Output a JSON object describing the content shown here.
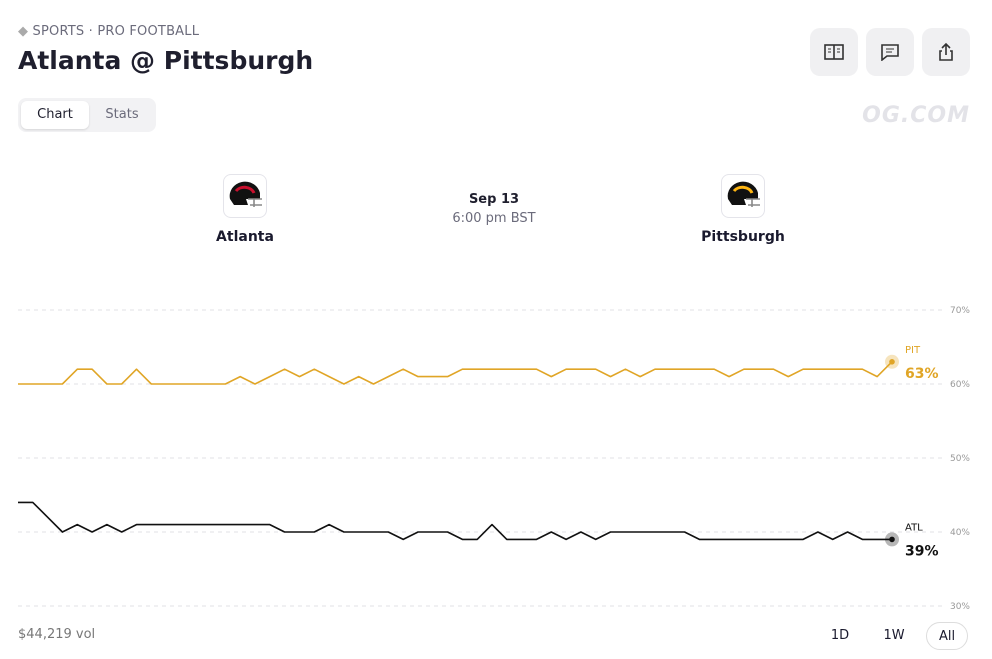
{
  "header": {
    "breadcrumb": "SPORTS · PRO FOOTBALL",
    "title": "Atlanta @ Pittsburgh"
  },
  "tabs": [
    "Chart",
    "Stats"
  ],
  "watermark": "OG.COM",
  "matchup": {
    "away": "Atlanta",
    "home": "Pittsburgh",
    "date": "Sep 13",
    "time": "6:00 pm BST"
  },
  "volume": "$44,219 vol",
  "ranges": [
    "1D",
    "1W",
    "All"
  ],
  "chart_data": {
    "type": "line",
    "ylim": [
      30,
      70
    ],
    "yticks": [
      {
        "value": 30,
        "label": "30%"
      },
      {
        "value": 40,
        "label": "40%"
      },
      {
        "value": 50,
        "label": "50%"
      },
      {
        "value": 60,
        "label": "60%"
      },
      {
        "value": 70,
        "label": "70%"
      }
    ],
    "grid": true,
    "series": [
      {
        "name": "PIT",
        "color": "#e0a526",
        "values": [
          60,
          60,
          60,
          60,
          62,
          62,
          60,
          60,
          62,
          60,
          60,
          60,
          60,
          60,
          60,
          61,
          60,
          61,
          62,
          61,
          62,
          61,
          60,
          61,
          60,
          61,
          62,
          61,
          61,
          61,
          62,
          62,
          62,
          62,
          62,
          62,
          61,
          62,
          62,
          62,
          61,
          62,
          61,
          62,
          62,
          62,
          62,
          62,
          61,
          62,
          62,
          62,
          61,
          62,
          62,
          62,
          62,
          62,
          61,
          63
        ],
        "value_labels": [
          null,
          null,
          null,
          null,
          null,
          null,
          null,
          null,
          null,
          null,
          null,
          null,
          null,
          null,
          null,
          null,
          null,
          null,
          null,
          null,
          null,
          null,
          null,
          null,
          null,
          null,
          null,
          null,
          null,
          null,
          null,
          null,
          null,
          null,
          null,
          null,
          null,
          null,
          null,
          null,
          null,
          null,
          null,
          null,
          null,
          null,
          null,
          null,
          null,
          null,
          null,
          null,
          null,
          null,
          null,
          null,
          null,
          null,
          null,
          "63%"
        ]
      },
      {
        "name": "ATL",
        "color": "#111111",
        "values": [
          44,
          44,
          42,
          40,
          41,
          40,
          41,
          40,
          41,
          41,
          41,
          41,
          41,
          41,
          41,
          41,
          41,
          41,
          40,
          40,
          40,
          41,
          40,
          40,
          40,
          40,
          39,
          40,
          40,
          40,
          39,
          39,
          41,
          39,
          39,
          39,
          40,
          39,
          40,
          39,
          40,
          40,
          40,
          40,
          40,
          40,
          39,
          39,
          39,
          39,
          39,
          39,
          39,
          39,
          40,
          39,
          40,
          39,
          39,
          39
        ],
        "value_labels": [
          null,
          null,
          null,
          null,
          null,
          null,
          null,
          null,
          null,
          null,
          null,
          null,
          null,
          null,
          null,
          null,
          null,
          null,
          null,
          null,
          null,
          null,
          null,
          null,
          null,
          null,
          null,
          null,
          null,
          null,
          null,
          null,
          null,
          null,
          null,
          null,
          null,
          null,
          null,
          null,
          null,
          null,
          null,
          null,
          null,
          null,
          null,
          null,
          null,
          null,
          null,
          null,
          null,
          null,
          null,
          null,
          null,
          null,
          null,
          "39%"
        ]
      }
    ]
  }
}
